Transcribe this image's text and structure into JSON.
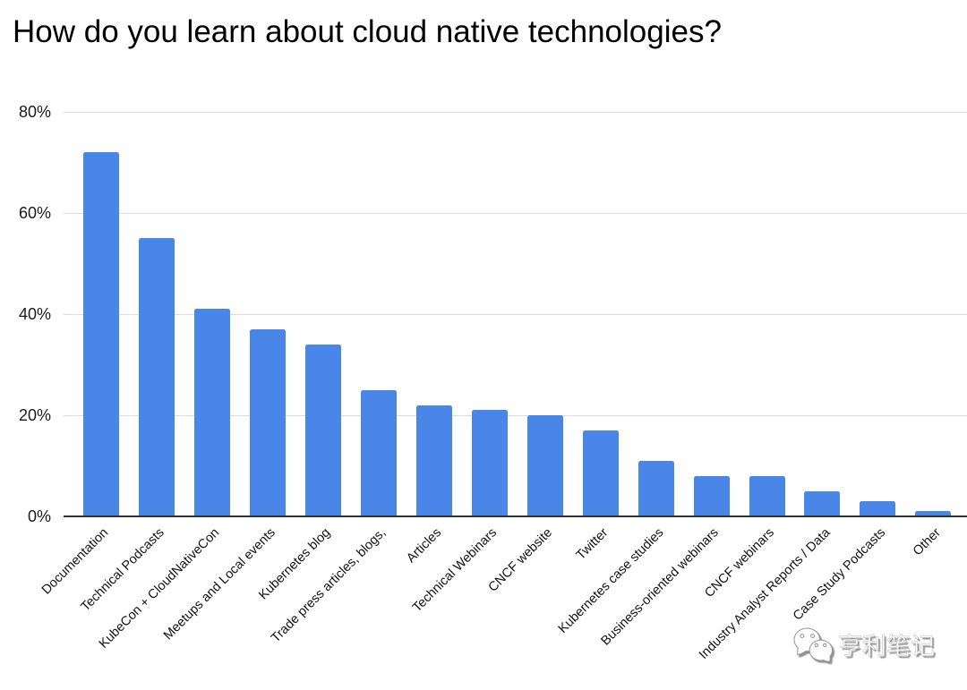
{
  "chart_data": {
    "type": "bar",
    "title": "How do you learn about cloud native technologies?",
    "categories": [
      "Documentation",
      "Technical Podcasts",
      "KubeCon + CloudNativeCon",
      "Meetups and Local events",
      "Kubernetes blog",
      "Trade press articles, blogs,",
      "Articles",
      "Technical Webinars",
      "CNCF website",
      "Twitter",
      "Kubernetes case studies",
      "Business-oriented webinars",
      "CNCF webinars",
      "Industry Analyst Reports / Data",
      "Case Study Podcasts",
      "Other"
    ],
    "values": [
      72,
      55,
      41,
      37,
      34,
      25,
      22,
      21,
      20,
      17,
      11,
      8,
      8,
      5,
      3,
      1
    ],
    "unit": "%",
    "xlabel": "",
    "ylabel": "",
    "ylim": [
      0,
      80
    ],
    "yticks": [
      "0%",
      "20%",
      "40%",
      "60%",
      "80%"
    ],
    "grid": true,
    "legend": "none",
    "bar_color": "#4a86e8",
    "background": "#ffffff"
  },
  "watermark": {
    "text": "亨利笔记",
    "icon": "wechat-logo",
    "style": "white-embossed"
  }
}
